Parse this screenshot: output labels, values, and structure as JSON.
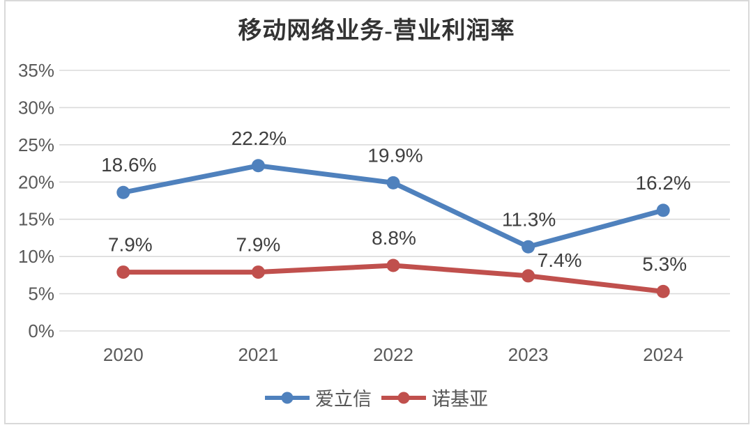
{
  "chart_data": {
    "type": "line",
    "title": "移动网络业务-营业利润率",
    "categories": [
      "2020",
      "2021",
      "2022",
      "2023",
      "2024"
    ],
    "series": [
      {
        "name": "爱立信",
        "color": "#4F81BD",
        "values": [
          18.6,
          22.2,
          19.9,
          11.3,
          16.2
        ],
        "labels": [
          "18.6%",
          "22.2%",
          "19.9%",
          "11.3%",
          "16.2%"
        ],
        "label_offsets": [
          [
            8,
            0
          ],
          [
            1,
            0
          ],
          [
            3,
            0
          ],
          [
            1,
            0
          ],
          [
            0,
            0
          ]
        ]
      },
      {
        "name": "诺基亚",
        "color": "#C0504D",
        "values": [
          7.9,
          7.9,
          8.8,
          7.4,
          5.3
        ],
        "labels": [
          "7.9%",
          "7.9%",
          "8.8%",
          "7.4%",
          "5.3%"
        ],
        "label_offsets": [
          [
            10,
            0
          ],
          [
            0,
            0
          ],
          [
            1,
            0
          ],
          [
            45,
            17
          ],
          [
            2,
            0
          ]
        ]
      }
    ],
    "ylim": [
      0,
      35
    ],
    "ytick_step": 5,
    "yticks": [
      "0%",
      "5%",
      "10%",
      "15%",
      "20%",
      "25%",
      "30%",
      "35%"
    ],
    "xlabel": "",
    "ylabel": "",
    "grid": "horizontal",
    "legend_position": "bottom",
    "colors": {
      "grid": "#DADADA",
      "tick_label": "#595959",
      "data_label": "#3F3F3F",
      "frame_border": "#D9D9D9",
      "background": "#FFFFFF"
    }
  }
}
